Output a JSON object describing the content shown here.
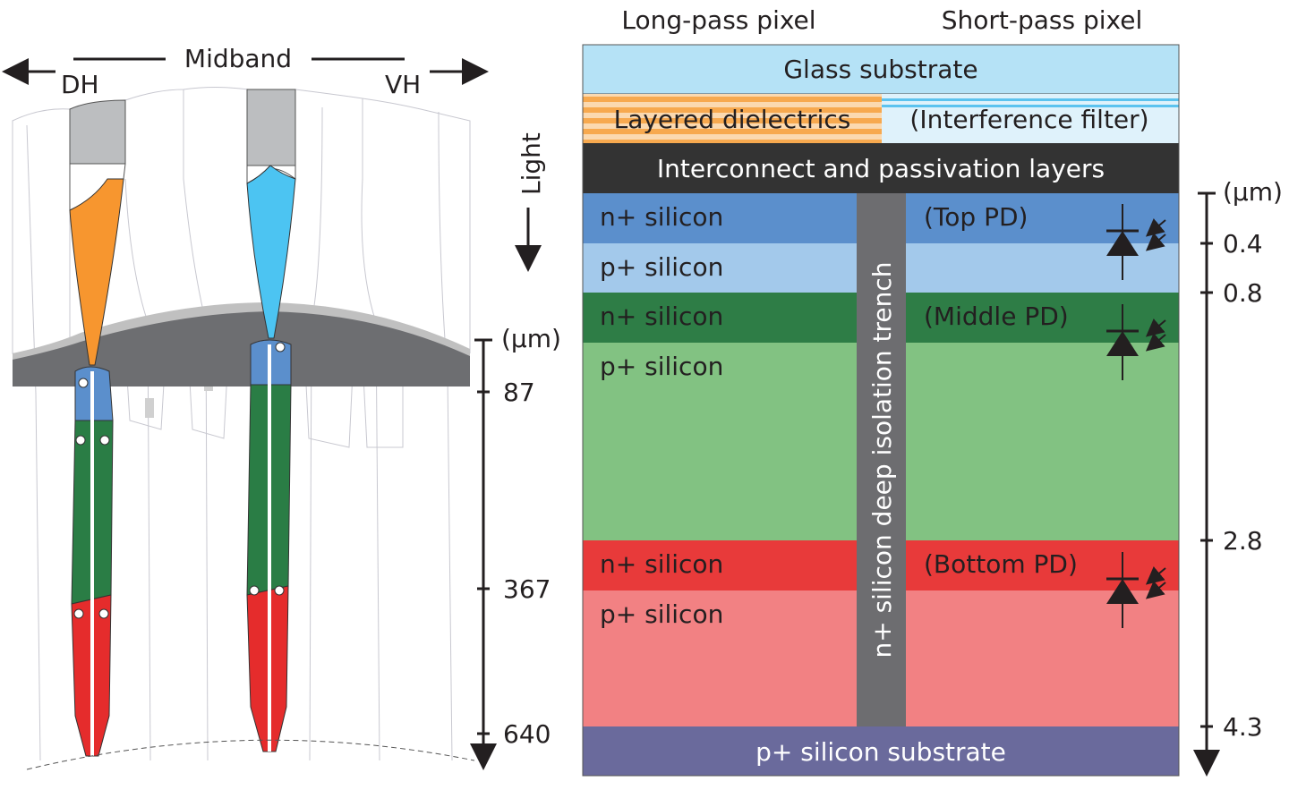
{
  "left_panel": {
    "midband_label": "Midband",
    "dh_label": "DH",
    "vh_label": "VH",
    "light_label": "Light",
    "scale": {
      "unit": "(µm)",
      "ticks": [
        "87",
        "367",
        "640"
      ]
    },
    "colors": {
      "orange_cone": "#f7962f",
      "blue_cone": "#4cc4f2",
      "outer_segment_blue": "#5b8fcc",
      "green_segment": "#2a7d45",
      "red_segment": "#e52c2c",
      "cap_gray": "#bcbec0",
      "band_dark": "#6d6e71"
    }
  },
  "right_panel": {
    "column_headers": [
      "Long-pass pixel",
      "Short-pass pixel"
    ],
    "layers": {
      "glass": "Glass substrate",
      "dielectrics": "Layered dielectrics",
      "filter": "(Interference filter)",
      "interconnect": "Interconnect and passivation layers",
      "top_n": "n+ silicon",
      "top_p": "p+ silicon",
      "mid_n": "n+ silicon",
      "mid_p": "p+ silicon",
      "bot_n": "n+ silicon",
      "bot_p": "p+ silicon",
      "substrate": "p+ silicon substrate",
      "trench": "n+ silicon deep isolation trench",
      "top_pd": "(Top PD)",
      "middle_pd": "(Middle PD)",
      "bottom_pd": "(Bottom PD)"
    },
    "scale": {
      "unit": "(µm)",
      "ticks": [
        "0.4",
        "0.8",
        "2.8",
        "4.3"
      ]
    },
    "colors": {
      "glass": "#b5e2f6",
      "interconnect": "#333333",
      "top_n": "#5b8fcc",
      "top_p": "#a3c9eb",
      "mid_n": "#2e7d46",
      "mid_p": "#82c282",
      "bot_n": "#e83a3a",
      "bot_p": "#f28183",
      "substrate": "#6a6a9c",
      "trench": "#6d6d70"
    }
  }
}
